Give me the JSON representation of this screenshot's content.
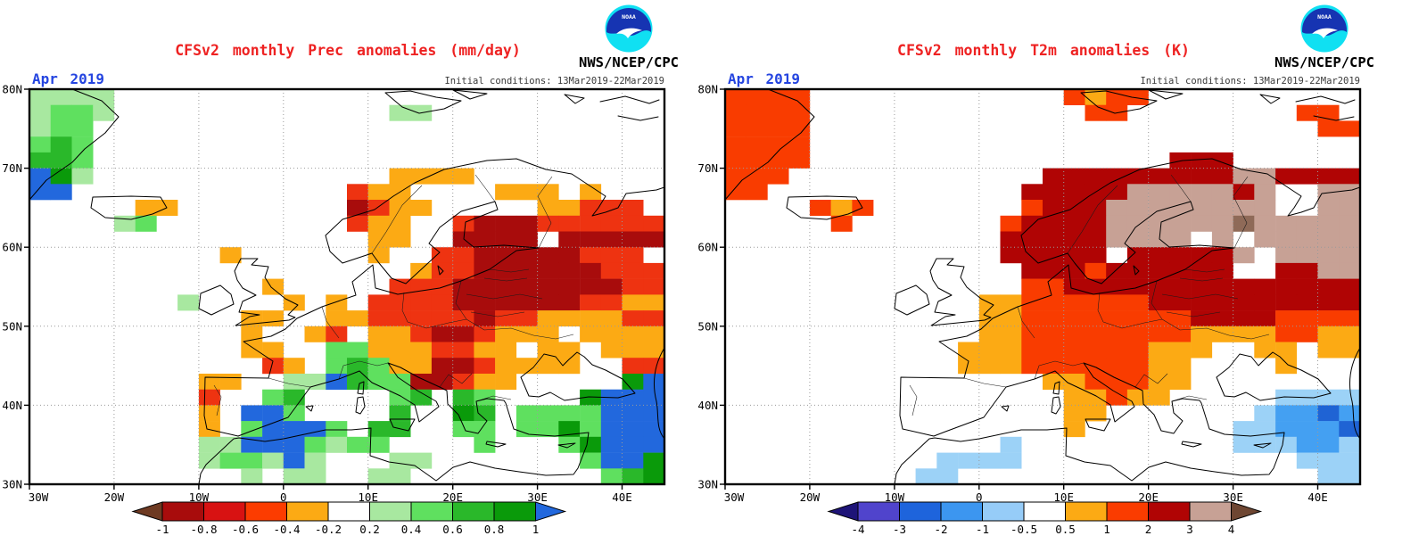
{
  "branding": {
    "logo_text": "NOAA",
    "agency": "NWS/NCEP/CPC"
  },
  "chart_data": [
    {
      "type": "heatmap",
      "panel": "precipitation-anomaly-map",
      "title": "CFSv2 monthly Prec anomalies (mm/day)",
      "forecast_month": "Apr 2019",
      "init_label": "Initial conditions: 13Mar2019-22Mar2019",
      "variable": "Prec",
      "units": "mm/day",
      "lon_range": [
        -30,
        45
      ],
      "lat_range": [
        30,
        80
      ],
      "x_tick_labels": [
        "30W",
        "20W",
        "10W",
        "0",
        "10E",
        "20E",
        "30E",
        "40E"
      ],
      "y_tick_labels": [
        "80N",
        "70N",
        "60N",
        "50N",
        "40N",
        "30N"
      ],
      "grid_on": true,
      "legend_position": "bottom",
      "colorbar": {
        "labels": [
          "-1",
          "-0.8",
          "-0.6",
          "-0.4",
          "-0.2",
          "0.2",
          "0.4",
          "0.6",
          "0.8",
          "1"
        ],
        "levels": [
          -1,
          -0.8,
          -0.6,
          -0.4,
          -0.2,
          0.2,
          0.4,
          0.6,
          0.8,
          1
        ],
        "cell_colors": [
          "#a80c0c",
          "#d81212",
          "#fc3c00",
          "#fcaa14",
          "#ffffff",
          "#a8e8a0",
          "#5fe05f",
          "#2ab82a",
          "#0a9a0a"
        ],
        "below_color": "#6e3a22",
        "above_color": "#2268dd"
      },
      "palette": {
        "a": "#a8e8a0",
        "b": "#5fe05f",
        "c": "#2ab82a",
        "d": "#0a9a0a",
        "B": "#2268dd",
        "o": "#fcaa14",
        "R": "#ee3311",
        "D": "#a80c0c"
      },
      "palette_values": {
        "a": "0.2 to 0.4",
        "b": "0.4 to 0.6",
        "c": "0.6 to 0.8",
        "d": "0.8 to 1",
        "B": "above 1",
        "o": "-0.4 to -0.2",
        "R": "-0.6 to -0.4",
        "D": "-1 to -0.8"
      },
      "grid": [
        "aaaa..........................",
        "abba.............aa...........",
        "abb...........................",
        "bcb...........................",
        "ccb...........................",
        "Bda..............oooo.........",
        "BB.............Roo....ooo.o...",
        ".....oo........DRoo.....ooRRR.",
        "....ab.........Roo..RDDDRRRRRR",
        "................oo..DDDD.DDDDD",
        ".........o......o..RRDDDDDRRR.",
        "..................oRRDDDDDDRRR",
        "...........o.....RRRDDDDDDDDRR",
        ".......a....o.o.RRRRDDDDDDRRoo",
        "..........oo..ooRRRRRDRRooooRR",
        "..........o..oR.ooRDDRooo.oooo",
        "..........oo..bboooRRoo.oo.ooo",
        "...........Ro.bcbooDDRoooo..RR",
        "........oo..aaBcbbDDRoo.....dB",
        "........R..bc....bc.cb....dBBB",
        "........o.BBb....c..dc.bbbbBBB",
        "........o.bBBBb.cc..bb.bbdbBBB",
        "........aaBBBbabb....b...bdBBB",
        "........abbaBa...aa.......bBBd",
        "..........a.aa..aa.........bcd"
      ]
    },
    {
      "type": "heatmap",
      "panel": "temperature-anomaly-map",
      "title": "CFSv2 monthly T2m anomalies (K)",
      "forecast_month": "Apr 2019",
      "init_label": "Initial conditions: 13Mar2019-22Mar2019",
      "variable": "T2m",
      "units": "K",
      "lon_range": [
        -30,
        45
      ],
      "lat_range": [
        30,
        80
      ],
      "x_tick_labels": [
        "30W",
        "20W",
        "10W",
        "0",
        "10E",
        "20E",
        "30E",
        "40E"
      ],
      "y_tick_labels": [
        "80N",
        "70N",
        "60N",
        "50N",
        "40N",
        "30N"
      ],
      "grid_on": true,
      "legend_position": "bottom",
      "colorbar": {
        "labels": [
          "-4",
          "-3",
          "-2",
          "-1",
          "-0.5",
          "0.5",
          "1",
          "2",
          "3",
          "4"
        ],
        "levels": [
          -4,
          -3,
          -2,
          -1,
          -0.5,
          0.5,
          1,
          2,
          3,
          4
        ],
        "cell_colors": [
          "#5044cc",
          "#1e64dc",
          "#3c96f0",
          "#96ccf8",
          "#ffffff",
          "#fcaa14",
          "#fa3c00",
          "#b00404",
          "#c7a195"
        ],
        "below_color": "#1e1478",
        "above_color": "#6e4632"
      },
      "palette": {
        "o": "#fcaa14",
        "r": "#f93c00",
        "D": "#b00404",
        "T": "#c7a195",
        "N": "#8f6a58",
        "l": "#9cd2f7",
        "m": "#44a0f2",
        "b": "#1f63d4"
      },
      "palette_values": {
        "o": "0.5 to 1",
        "r": "1 to 2",
        "D": "2 to 3",
        "T": "3 to 4",
        "N": "above 4",
        "l": "-1 to -0.5",
        "m": "-2 to -1",
        "b": "-3 to -2"
      },
      "grid": [
        "rrrr............rorr..........",
        "rrrr.............rr........rr.",
        "rrrr........................rr",
        "rrrr..........................",
        "rrrr.................DDD......",
        "rrr............DDDDDDDDDTTDDDD",
        "rr............DDDDDTTTTTDT..TT",
        "....ror.......rDDDTTTTTTTT..TT",
        ".....r.......rDDDDTTTTTTNTTTTT",
        ".............DDDDDTTTT.T.TTTTT",
        ".............DDDDD.DDDDDT.TTTT",
        "..............DDDrDDDDDD..DDTT",
        "..............rrDDDDDDDDDDDDDD",
        "............oorrrrrrDDDDDDDDDD",
        "............oorrrrrrrrDDDDrrrr",
        "............oorrrrrrrroooorroo",
        "...........ooorrrrrrooo..oo.oo",
        "...........ooorrrrrroo....o...",
        "...............oorrroo........",
        "................ooroo.....llll",
        "................oo.......lmmbm",
        "................o.......llmmmb",
        ".............l..........lllmml",
        "..........llll.............lll",
        ".........ll.................ll"
      ]
    }
  ]
}
